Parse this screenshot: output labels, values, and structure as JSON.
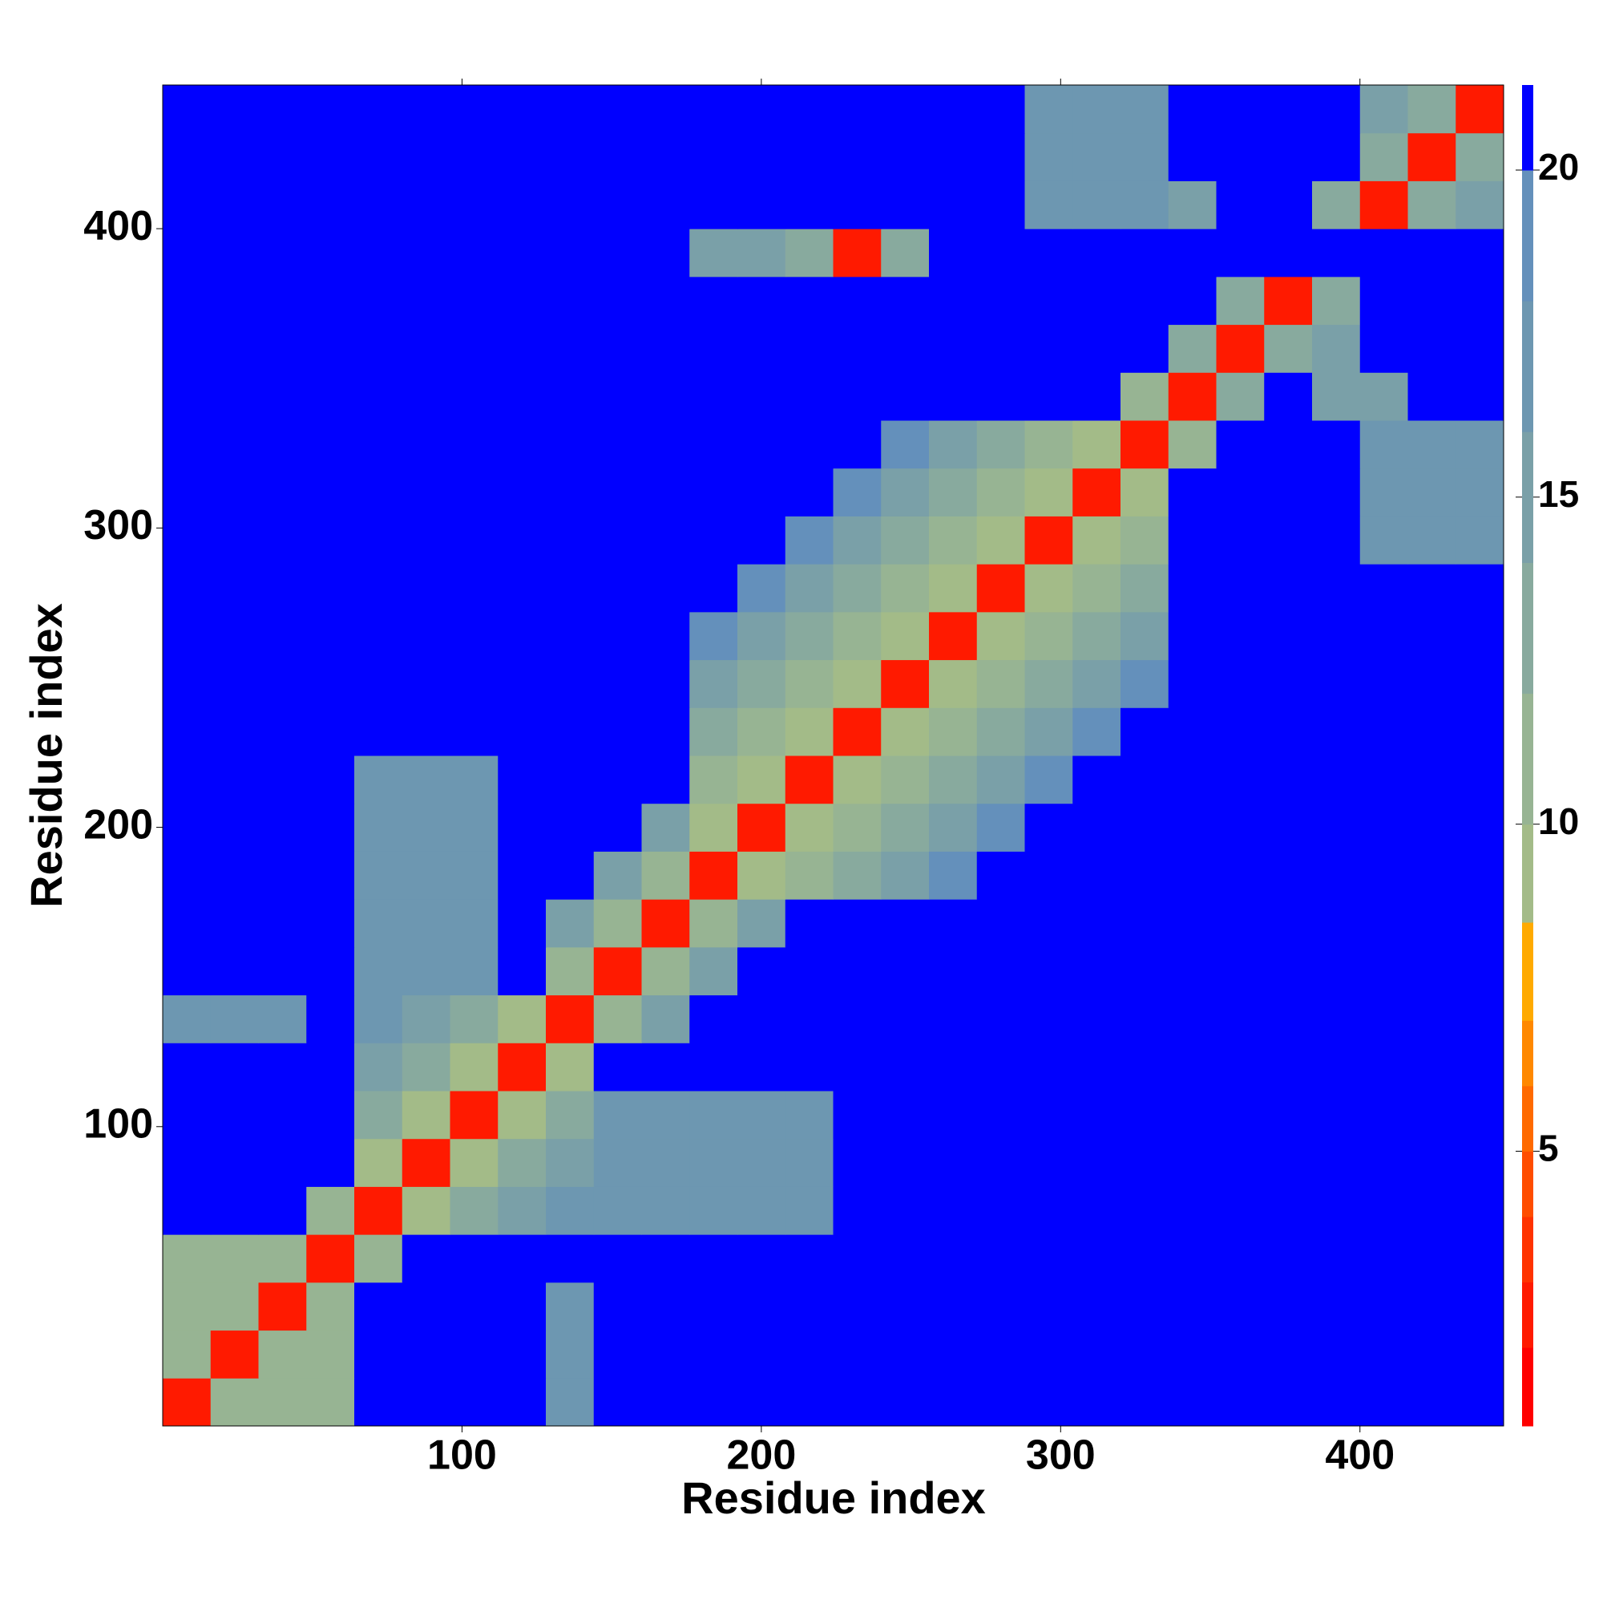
{
  "chart_data": {
    "type": "heatmap",
    "x_label": "Residue index",
    "y_label": "Residue index",
    "xlim": [
      0,
      448
    ],
    "ylim": [
      0,
      448
    ],
    "xticks": [
      100,
      200,
      300,
      400
    ],
    "yticks": [
      100,
      200,
      300,
      400
    ],
    "x": [
      8,
      24,
      40,
      56,
      72,
      88,
      104,
      120,
      136,
      152,
      168,
      184,
      200,
      216,
      232,
      248,
      264,
      280,
      296,
      312,
      328,
      344,
      360,
      376,
      392,
      408,
      424,
      440
    ],
    "y": [
      8,
      24,
      40,
      56,
      72,
      88,
      104,
      120,
      136,
      152,
      168,
      184,
      200,
      216,
      232,
      248,
      264,
      280,
      296,
      312,
      328,
      344,
      360,
      376,
      392,
      408,
      424,
      440
    ],
    "z": [
      [
        3,
        11,
        11,
        11,
        21,
        21,
        21,
        21,
        18,
        21,
        21,
        21,
        21,
        21,
        21,
        21,
        21,
        21,
        21,
        21,
        21,
        21,
        21,
        21,
        21,
        21,
        21,
        21
      ],
      [
        11,
        3,
        11,
        11,
        21,
        21,
        21,
        21,
        18,
        21,
        21,
        21,
        21,
        21,
        21,
        21,
        21,
        21,
        21,
        21,
        21,
        21,
        21,
        21,
        21,
        21,
        21,
        21
      ],
      [
        11,
        11,
        3,
        11,
        21,
        21,
        21,
        21,
        18,
        21,
        21,
        21,
        21,
        21,
        21,
        21,
        21,
        21,
        21,
        21,
        21,
        21,
        21,
        21,
        21,
        21,
        21,
        21
      ],
      [
        11,
        11,
        11,
        3,
        12,
        21,
        21,
        21,
        21,
        21,
        21,
        21,
        21,
        21,
        21,
        21,
        21,
        21,
        21,
        21,
        21,
        21,
        21,
        21,
        21,
        21,
        21,
        21
      ],
      [
        21,
        21,
        21,
        12,
        3,
        10,
        13,
        15,
        17,
        17,
        17,
        17,
        17,
        17,
        21,
        21,
        21,
        21,
        21,
        21,
        21,
        21,
        21,
        21,
        21,
        21,
        21,
        21
      ],
      [
        21,
        21,
        21,
        21,
        10,
        3,
        10,
        13,
        15,
        17,
        17,
        17,
        17,
        17,
        21,
        21,
        21,
        21,
        21,
        21,
        21,
        21,
        21,
        21,
        21,
        21,
        21,
        21
      ],
      [
        21,
        21,
        21,
        21,
        13,
        10,
        3,
        10,
        13,
        17,
        17,
        17,
        17,
        17,
        21,
        21,
        21,
        21,
        21,
        21,
        21,
        21,
        21,
        21,
        21,
        21,
        21,
        21
      ],
      [
        21,
        21,
        21,
        21,
        15,
        13,
        10,
        3,
        10,
        21,
        21,
        21,
        21,
        21,
        21,
        21,
        21,
        21,
        21,
        21,
        21,
        21,
        21,
        21,
        21,
        21,
        21,
        21
      ],
      [
        18,
        18,
        18,
        21,
        17,
        15,
        13,
        10,
        3,
        12,
        16,
        21,
        21,
        21,
        21,
        21,
        21,
        21,
        21,
        21,
        21,
        21,
        21,
        21,
        21,
        21,
        21,
        21
      ],
      [
        21,
        21,
        21,
        21,
        17,
        17,
        17,
        21,
        12,
        3,
        11,
        16,
        21,
        21,
        21,
        21,
        21,
        21,
        21,
        21,
        21,
        21,
        21,
        21,
        21,
        21,
        21,
        21
      ],
      [
        21,
        21,
        21,
        21,
        17,
        17,
        17,
        21,
        16,
        11,
        3,
        12,
        16,
        21,
        21,
        21,
        21,
        21,
        21,
        21,
        21,
        21,
        21,
        21,
        21,
        21,
        21,
        21
      ],
      [
        21,
        21,
        21,
        21,
        17,
        17,
        17,
        21,
        21,
        16,
        12,
        3,
        9,
        11,
        13,
        16,
        19,
        21,
        21,
        21,
        21,
        21,
        21,
        21,
        21,
        21,
        21,
        21
      ],
      [
        21,
        21,
        21,
        21,
        17,
        17,
        17,
        21,
        21,
        21,
        16,
        9,
        3,
        9,
        11,
        13,
        16,
        19,
        21,
        21,
        21,
        21,
        21,
        21,
        21,
        21,
        21,
        21
      ],
      [
        21,
        21,
        21,
        21,
        17,
        17,
        17,
        21,
        21,
        21,
        21,
        11,
        9,
        3,
        9,
        11,
        13,
        16,
        19,
        21,
        21,
        21,
        21,
        21,
        21,
        21,
        21,
        21
      ],
      [
        21,
        21,
        21,
        21,
        21,
        21,
        21,
        21,
        21,
        21,
        21,
        13,
        11,
        9,
        3,
        9,
        11,
        13,
        16,
        19,
        21,
        21,
        21,
        21,
        21,
        21,
        21,
        21
      ],
      [
        21,
        21,
        21,
        21,
        21,
        21,
        21,
        21,
        21,
        21,
        21,
        16,
        13,
        11,
        9,
        3,
        9,
        11,
        13,
        16,
        19,
        21,
        21,
        21,
        21,
        21,
        21,
        21
      ],
      [
        21,
        21,
        21,
        21,
        21,
        21,
        21,
        21,
        21,
        21,
        21,
        19,
        16,
        13,
        11,
        9,
        3,
        9,
        11,
        13,
        16,
        21,
        21,
        21,
        21,
        21,
        21,
        21
      ],
      [
        21,
        21,
        21,
        21,
        21,
        21,
        21,
        21,
        21,
        21,
        21,
        21,
        19,
        16,
        13,
        11,
        9,
        3,
        9,
        11,
        13,
        21,
        21,
        21,
        21,
        21,
        21,
        21
      ],
      [
        21,
        21,
        21,
        21,
        21,
        21,
        21,
        21,
        21,
        21,
        21,
        21,
        21,
        19,
        16,
        13,
        11,
        9,
        3,
        9,
        11,
        21,
        21,
        21,
        21,
        17,
        17,
        17
      ],
      [
        21,
        21,
        21,
        21,
        21,
        21,
        21,
        21,
        21,
        21,
        21,
        21,
        21,
        21,
        19,
        16,
        13,
        11,
        9,
        3,
        9,
        21,
        21,
        21,
        21,
        17,
        17,
        17
      ],
      [
        21,
        21,
        21,
        21,
        21,
        21,
        21,
        21,
        21,
        21,
        21,
        21,
        21,
        21,
        21,
        19,
        16,
        13,
        11,
        9,
        3,
        12,
        21,
        21,
        21,
        17,
        17,
        17
      ],
      [
        21,
        21,
        21,
        21,
        21,
        21,
        21,
        21,
        21,
        21,
        21,
        21,
        21,
        21,
        21,
        21,
        21,
        21,
        21,
        21,
        12,
        3,
        13,
        21,
        15,
        15,
        21,
        21
      ],
      [
        21,
        21,
        21,
        21,
        21,
        21,
        21,
        21,
        21,
        21,
        21,
        21,
        21,
        21,
        21,
        21,
        21,
        21,
        21,
        21,
        21,
        13,
        3,
        13,
        15,
        21,
        21,
        21
      ],
      [
        21,
        21,
        21,
        21,
        21,
        21,
        21,
        21,
        21,
        21,
        21,
        21,
        21,
        21,
        21,
        21,
        21,
        21,
        21,
        21,
        21,
        21,
        13,
        3,
        13,
        21,
        21,
        21
      ],
      [
        21,
        21,
        21,
        21,
        21,
        21,
        21,
        21,
        21,
        21,
        21,
        15,
        15,
        13,
        3,
        13,
        21,
        21,
        21,
        21,
        21,
        21,
        21,
        21,
        21,
        21,
        21,
        21
      ],
      [
        21,
        21,
        21,
        21,
        21,
        21,
        21,
        21,
        21,
        21,
        21,
        21,
        21,
        21,
        21,
        21,
        21,
        21,
        17,
        17,
        17,
        15,
        21,
        21,
        13,
        3,
        13,
        15
      ],
      [
        21,
        21,
        21,
        21,
        21,
        21,
        21,
        21,
        21,
        21,
        21,
        21,
        21,
        21,
        21,
        21,
        21,
        21,
        17,
        17,
        17,
        21,
        21,
        21,
        21,
        13,
        3,
        13
      ],
      [
        21,
        21,
        21,
        21,
        21,
        21,
        21,
        21,
        21,
        21,
        21,
        21,
        21,
        21,
        21,
        21,
        21,
        21,
        17,
        17,
        17,
        21,
        21,
        21,
        21,
        15,
        13,
        3
      ]
    ],
    "zlim": [
      0.8,
      21.3
    ],
    "zticks": [
      5,
      10,
      15,
      20
    ],
    "colorscale": [
      [
        2,
        "#ff0000"
      ],
      [
        3,
        "#ff1a00"
      ],
      [
        4,
        "#ff3300"
      ],
      [
        5,
        "#ff4d00"
      ],
      [
        6,
        "#ff6a00"
      ],
      [
        7,
        "#ff8800"
      ],
      [
        8.5,
        "#ffaa00"
      ],
      [
        10,
        "#a3bb88"
      ],
      [
        12,
        "#97b493"
      ],
      [
        14,
        "#88aa9e"
      ],
      [
        16,
        "#7aa0a8"
      ],
      [
        18,
        "#6d97b1"
      ],
      [
        20,
        "#6490bb"
      ],
      [
        21.3,
        "#0000ff"
      ]
    ]
  }
}
